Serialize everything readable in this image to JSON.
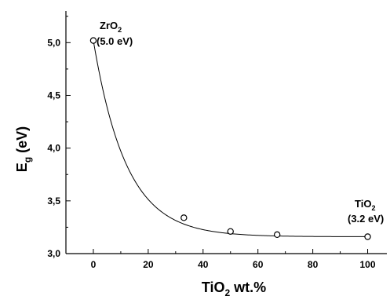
{
  "chart_data": {
    "type": "scatter",
    "xlabel": {
      "main": "TiO",
      "sub": "2",
      "rest": " wt.%"
    },
    "ylabel": {
      "main": "E",
      "sub": "g",
      "rest": " (eV)"
    },
    "xlim": [
      -10,
      107
    ],
    "ylim": [
      3.0,
      5.3
    ],
    "x_ticks": [
      0,
      20,
      40,
      60,
      80,
      100
    ],
    "x_tick_labels": [
      "0",
      "20",
      "40",
      "60",
      "80",
      "100"
    ],
    "y_ticks": [
      3.0,
      3.5,
      4.0,
      4.5,
      5.0
    ],
    "y_tick_labels": [
      "3,0",
      "3,5",
      "4,0",
      "4,5",
      "5,0"
    ],
    "grid": false,
    "series": [
      {
        "points": [
          {
            "x": 0,
            "y": 5.02
          },
          {
            "x": 33,
            "y": 3.34
          },
          {
            "x": 50,
            "y": 3.21
          },
          {
            "x": 67,
            "y": 3.18
          },
          {
            "x": 100,
            "y": 3.16
          }
        ],
        "marker": "open-circle",
        "fit_line": true
      }
    ],
    "annotations": [
      {
        "id": "zro2",
        "formula": "ZrO",
        "sub": "2",
        "value": "(5.0 eV)"
      },
      {
        "id": "tio2",
        "formula": "TiO",
        "sub": "2",
        "value": "(3.2 eV)"
      }
    ]
  }
}
